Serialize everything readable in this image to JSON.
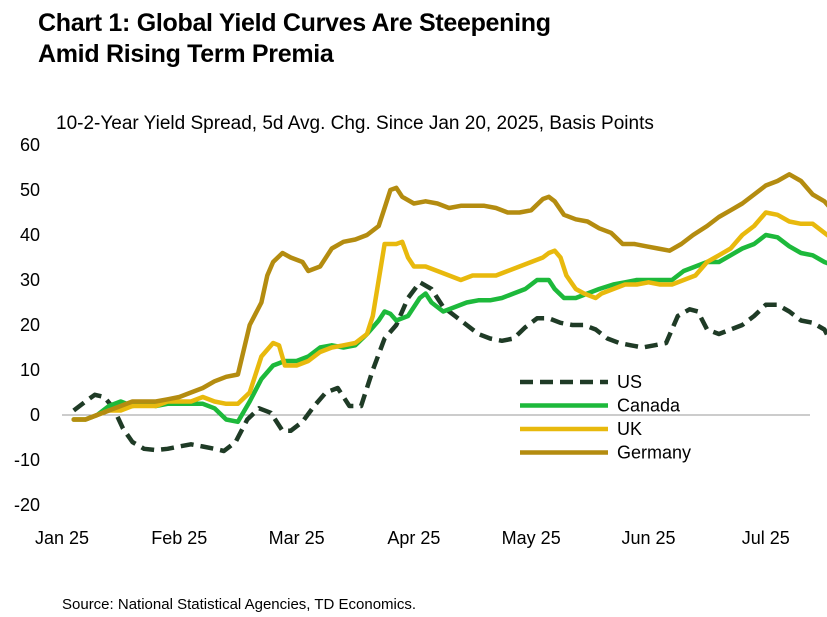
{
  "header": {
    "title_line1": "Chart 1: Global Yield Curves Are Steepening",
    "title_line2": "Amid Rising Term Premia"
  },
  "footer": {
    "source": "Source: National Statistical Agencies, TD Economics."
  },
  "chart_data": {
    "type": "line",
    "title": "Chart 1: Global Yield Curves Are Steepening Amid Rising Term Premia",
    "subtitle": "10-2-Year Yield Spread, 5d Avg. Chg. Since Jan 20, 2025, Basis Points",
    "xlabel": "",
    "ylabel": "",
    "ylim": [
      -20,
      60
    ],
    "yticks": [
      60,
      50,
      40,
      30,
      20,
      10,
      0,
      -10,
      -20
    ],
    "xlim": [
      0,
      6.6
    ],
    "xticks": [
      {
        "label": "Jan 25",
        "x": 0
      },
      {
        "label": "Feb 25",
        "x": 1
      },
      {
        "label": "Mar 25",
        "x": 2
      },
      {
        "label": "Apr 25",
        "x": 3
      },
      {
        "label": "May 25",
        "x": 4
      },
      {
        "label": "Jun 25",
        "x": 5
      },
      {
        "label": "Jul 25",
        "x": 6
      }
    ],
    "grid": false,
    "legend_position": "center-right",
    "series": [
      {
        "name": "US",
        "color": "#1f3b26",
        "dash": true,
        "points": [
          [
            0.1,
            1
          ],
          [
            0.2,
            3
          ],
          [
            0.28,
            4.5
          ],
          [
            0.36,
            4
          ],
          [
            0.44,
            1.5
          ],
          [
            0.52,
            -3
          ],
          [
            0.6,
            -6
          ],
          [
            0.7,
            -7.5
          ],
          [
            0.8,
            -7.8
          ],
          [
            0.9,
            -7.5
          ],
          [
            1,
            -7
          ],
          [
            1.1,
            -6.5
          ],
          [
            1.2,
            -7
          ],
          [
            1.3,
            -7.5
          ],
          [
            1.38,
            -8
          ],
          [
            1.48,
            -6
          ],
          [
            1.58,
            -1
          ],
          [
            1.68,
            1.5
          ],
          [
            1.78,
            0.5
          ],
          [
            1.88,
            -3.5
          ],
          [
            1.95,
            -3.5
          ],
          [
            2.05,
            -1.5
          ],
          [
            2.15,
            2
          ],
          [
            2.25,
            5
          ],
          [
            2.35,
            6
          ],
          [
            2.45,
            2
          ],
          [
            2.55,
            2
          ],
          [
            2.65,
            10
          ],
          [
            2.75,
            17
          ],
          [
            2.85,
            20
          ],
          [
            2.95,
            26
          ],
          [
            3.05,
            29.5
          ],
          [
            3.15,
            28
          ],
          [
            3.25,
            24
          ],
          [
            3.35,
            22
          ],
          [
            3.45,
            20
          ],
          [
            3.55,
            18
          ],
          [
            3.65,
            17
          ],
          [
            3.75,
            16.5
          ],
          [
            3.85,
            17
          ],
          [
            3.95,
            19.5
          ],
          [
            4.05,
            21.5
          ],
          [
            4.15,
            21.5
          ],
          [
            4.25,
            20.5
          ],
          [
            4.35,
            20
          ],
          [
            4.45,
            20
          ],
          [
            4.55,
            19
          ],
          [
            4.65,
            17
          ],
          [
            4.75,
            16
          ],
          [
            4.85,
            15.5
          ],
          [
            4.95,
            15
          ],
          [
            5.05,
            15.5
          ],
          [
            5.15,
            16
          ],
          [
            5.25,
            22
          ],
          [
            5.35,
            23.5
          ],
          [
            5.42,
            23
          ],
          [
            5.5,
            19
          ],
          [
            5.6,
            18
          ],
          [
            5.7,
            19
          ],
          [
            5.8,
            20
          ],
          [
            5.9,
            22
          ],
          [
            6,
            24.5
          ],
          [
            6.1,
            24.5
          ],
          [
            6.2,
            23
          ],
          [
            6.3,
            21
          ],
          [
            6.4,
            20.5
          ],
          [
            6.5,
            19
          ],
          [
            6.55,
            16.5
          ]
        ]
      },
      {
        "name": "Canada",
        "color": "#1db93b",
        "dash": false,
        "points": [
          [
            0.1,
            -1
          ],
          [
            0.2,
            -1
          ],
          [
            0.3,
            0
          ],
          [
            0.4,
            2
          ],
          [
            0.5,
            3
          ],
          [
            0.6,
            2
          ],
          [
            0.7,
            2.5
          ],
          [
            0.8,
            2
          ],
          [
            0.9,
            2.5
          ],
          [
            1,
            2.5
          ],
          [
            1.1,
            2.5
          ],
          [
            1.2,
            2.5
          ],
          [
            1.3,
            1.5
          ],
          [
            1.4,
            -1
          ],
          [
            1.5,
            -1.5
          ],
          [
            1.6,
            3
          ],
          [
            1.7,
            8
          ],
          [
            1.8,
            11
          ],
          [
            1.9,
            12
          ],
          [
            2,
            12
          ],
          [
            2.1,
            13
          ],
          [
            2.2,
            15
          ],
          [
            2.3,
            15.5
          ],
          [
            2.4,
            15
          ],
          [
            2.5,
            15.5
          ],
          [
            2.6,
            18
          ],
          [
            2.7,
            21
          ],
          [
            2.75,
            23
          ],
          [
            2.8,
            22.5
          ],
          [
            2.85,
            21
          ],
          [
            2.95,
            22
          ],
          [
            3.05,
            26
          ],
          [
            3.1,
            27
          ],
          [
            3.15,
            25
          ],
          [
            3.25,
            23
          ],
          [
            3.35,
            24
          ],
          [
            3.45,
            25
          ],
          [
            3.55,
            25.5
          ],
          [
            3.65,
            25.5
          ],
          [
            3.75,
            26
          ],
          [
            3.85,
            27
          ],
          [
            3.95,
            28
          ],
          [
            4.05,
            30
          ],
          [
            4.15,
            30
          ],
          [
            4.2,
            28
          ],
          [
            4.28,
            26
          ],
          [
            4.38,
            26
          ],
          [
            4.48,
            27
          ],
          [
            4.58,
            28
          ],
          [
            4.7,
            29
          ],
          [
            4.8,
            29.5
          ],
          [
            4.9,
            30
          ],
          [
            5,
            30
          ],
          [
            5.1,
            30
          ],
          [
            5.2,
            30
          ],
          [
            5.3,
            32
          ],
          [
            5.4,
            33
          ],
          [
            5.5,
            34
          ],
          [
            5.6,
            34
          ],
          [
            5.7,
            35.5
          ],
          [
            5.8,
            37
          ],
          [
            5.9,
            38
          ],
          [
            6,
            40
          ],
          [
            6.1,
            39.5
          ],
          [
            6.2,
            37.5
          ],
          [
            6.3,
            36
          ],
          [
            6.4,
            35.5
          ],
          [
            6.5,
            34
          ],
          [
            6.55,
            33.5
          ]
        ]
      },
      {
        "name": "UK",
        "color": "#e8b90d",
        "dash": false,
        "points": [
          [
            0.1,
            -1
          ],
          [
            0.2,
            -1
          ],
          [
            0.3,
            0
          ],
          [
            0.4,
            1
          ],
          [
            0.5,
            1
          ],
          [
            0.6,
            2
          ],
          [
            0.7,
            2
          ],
          [
            0.8,
            2
          ],
          [
            0.9,
            3
          ],
          [
            1,
            3
          ],
          [
            1.1,
            3
          ],
          [
            1.2,
            4
          ],
          [
            1.3,
            3
          ],
          [
            1.4,
            2.5
          ],
          [
            1.5,
            2.5
          ],
          [
            1.6,
            5
          ],
          [
            1.7,
            13
          ],
          [
            1.8,
            16
          ],
          [
            1.85,
            15.5
          ],
          [
            1.9,
            11
          ],
          [
            2,
            11
          ],
          [
            2.1,
            12
          ],
          [
            2.2,
            14
          ],
          [
            2.3,
            15
          ],
          [
            2.4,
            15.5
          ],
          [
            2.5,
            16
          ],
          [
            2.6,
            18
          ],
          [
            2.65,
            22
          ],
          [
            2.7,
            30
          ],
          [
            2.75,
            38
          ],
          [
            2.85,
            38
          ],
          [
            2.9,
            38.5
          ],
          [
            2.95,
            35
          ],
          [
            3,
            33
          ],
          [
            3.1,
            33
          ],
          [
            3.2,
            32
          ],
          [
            3.3,
            31
          ],
          [
            3.4,
            30
          ],
          [
            3.5,
            31
          ],
          [
            3.6,
            31
          ],
          [
            3.7,
            31
          ],
          [
            3.8,
            32
          ],
          [
            3.9,
            33
          ],
          [
            4,
            34
          ],
          [
            4.1,
            35
          ],
          [
            4.15,
            36
          ],
          [
            4.2,
            36.5
          ],
          [
            4.25,
            35
          ],
          [
            4.3,
            31
          ],
          [
            4.38,
            28
          ],
          [
            4.45,
            27
          ],
          [
            4.55,
            26
          ],
          [
            4.6,
            27
          ],
          [
            4.7,
            28
          ],
          [
            4.8,
            29
          ],
          [
            4.9,
            29
          ],
          [
            5,
            29.5
          ],
          [
            5.1,
            29
          ],
          [
            5.2,
            29
          ],
          [
            5.3,
            30
          ],
          [
            5.4,
            31
          ],
          [
            5.5,
            34
          ],
          [
            5.6,
            35.5
          ],
          [
            5.7,
            37
          ],
          [
            5.8,
            40
          ],
          [
            5.9,
            42
          ],
          [
            6,
            45
          ],
          [
            6.1,
            44.5
          ],
          [
            6.2,
            43
          ],
          [
            6.3,
            42.5
          ],
          [
            6.4,
            42.5
          ],
          [
            6.5,
            40.5
          ],
          [
            6.55,
            39.5
          ]
        ]
      },
      {
        "name": "Germany",
        "color": "#b48c10",
        "dash": false,
        "points": [
          [
            0.1,
            -1
          ],
          [
            0.2,
            -1
          ],
          [
            0.3,
            0
          ],
          [
            0.4,
            1
          ],
          [
            0.5,
            2
          ],
          [
            0.6,
            3
          ],
          [
            0.7,
            3
          ],
          [
            0.8,
            3
          ],
          [
            0.9,
            3.5
          ],
          [
            1,
            4
          ],
          [
            1.1,
            5
          ],
          [
            1.2,
            6
          ],
          [
            1.3,
            7.5
          ],
          [
            1.4,
            8.5
          ],
          [
            1.5,
            9
          ],
          [
            1.6,
            20
          ],
          [
            1.7,
            25
          ],
          [
            1.75,
            31
          ],
          [
            1.8,
            34
          ],
          [
            1.88,
            36
          ],
          [
            1.95,
            35
          ],
          [
            2.05,
            34
          ],
          [
            2.1,
            32
          ],
          [
            2.2,
            33
          ],
          [
            2.3,
            37
          ],
          [
            2.4,
            38.5
          ],
          [
            2.5,
            39
          ],
          [
            2.6,
            40
          ],
          [
            2.7,
            42
          ],
          [
            2.75,
            46
          ],
          [
            2.8,
            50
          ],
          [
            2.85,
            50.5
          ],
          [
            2.9,
            48.5
          ],
          [
            3,
            47
          ],
          [
            3.1,
            47.5
          ],
          [
            3.2,
            47
          ],
          [
            3.3,
            46
          ],
          [
            3.4,
            46.5
          ],
          [
            3.5,
            46.5
          ],
          [
            3.6,
            46.5
          ],
          [
            3.7,
            46
          ],
          [
            3.8,
            45
          ],
          [
            3.9,
            45
          ],
          [
            4,
            45.5
          ],
          [
            4.1,
            48
          ],
          [
            4.15,
            48.5
          ],
          [
            4.2,
            47.5
          ],
          [
            4.28,
            44.5
          ],
          [
            4.38,
            43.5
          ],
          [
            4.48,
            43
          ],
          [
            4.58,
            41.5
          ],
          [
            4.68,
            40.5
          ],
          [
            4.78,
            38
          ],
          [
            4.88,
            38
          ],
          [
            4.98,
            37.5
          ],
          [
            5.08,
            37
          ],
          [
            5.18,
            36.5
          ],
          [
            5.28,
            38
          ],
          [
            5.38,
            40
          ],
          [
            5.5,
            42
          ],
          [
            5.6,
            44
          ],
          [
            5.7,
            45.5
          ],
          [
            5.8,
            47
          ],
          [
            5.9,
            49
          ],
          [
            6,
            51
          ],
          [
            6.1,
            52
          ],
          [
            6.2,
            53.5
          ],
          [
            6.3,
            52
          ],
          [
            6.4,
            49
          ],
          [
            6.5,
            47.5
          ],
          [
            6.55,
            46
          ],
          [
            6.6,
            45
          ]
        ]
      }
    ]
  }
}
